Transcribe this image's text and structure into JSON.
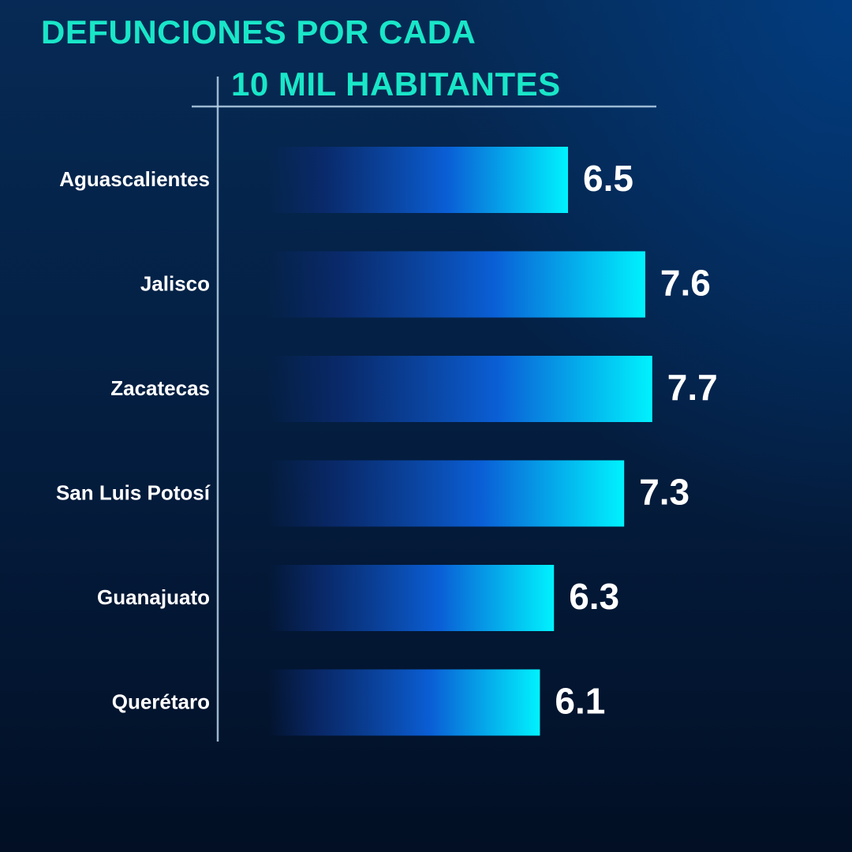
{
  "colors": {
    "title": "#19e6c8",
    "bar_start": "#0a2a6e",
    "bar_mid": "#0a5fd6",
    "bar_end": "#00f2fe",
    "axis": "#b7d2e8",
    "label": "#ffffff"
  },
  "chart_data": {
    "type": "bar",
    "orientation": "horizontal",
    "title_lines": [
      "DEFUNCIONES POR CADA",
      "10 MIL HABITANTES"
    ],
    "categories": [
      "Aguascalientes",
      "Jalisco",
      "Zacatecas",
      "San Luis Potosí",
      "Guanajuato",
      "Querétaro"
    ],
    "values": [
      6.5,
      7.6,
      7.7,
      7.3,
      6.3,
      6.1
    ],
    "value_labels": [
      "6.5",
      "7.6",
      "7.7",
      "7.3",
      "6.3",
      "6.1"
    ],
    "xlabel": "",
    "ylabel": "",
    "grid": false,
    "legend": "none"
  }
}
